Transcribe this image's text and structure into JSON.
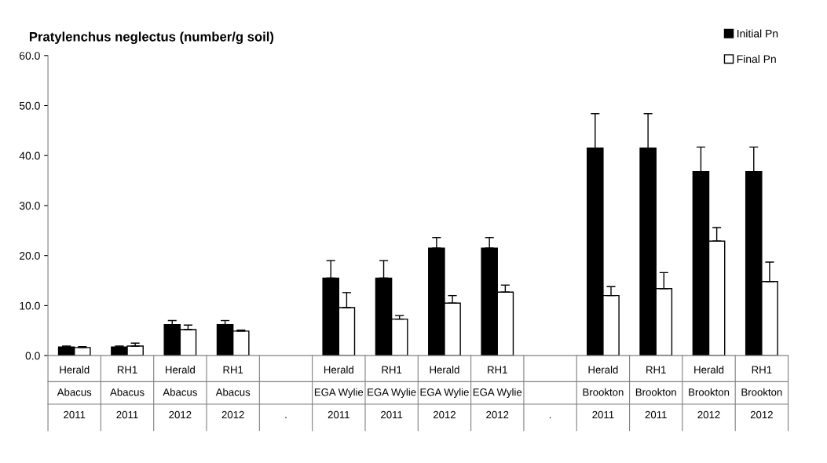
{
  "chart_data": {
    "type": "bar",
    "title": "Pratylenchus neglectus (number/g soil)",
    "categories": [
      "Herald\nAbacus\n2011",
      "RH1\nAbacus\n2011",
      "Herald\nAbacus\n2012",
      "RH1\nAbacus\n2012",
      "\n\n.",
      "Herald\nEGA Wylie\n2011",
      "RH1\nEGA Wylie\n2011",
      "Herald\nEGA Wylie\n2012",
      "RH1\nEGA Wylie\n2012",
      "\n\n.",
      "Herald\nBrookton\n2011",
      "RH1\nBrookton\n2011",
      "Herald\nBrookton\n2012",
      "RH1\nBrookton\n2012"
    ],
    "series": [
      {
        "name": "Initial Pn",
        "color": "#000000",
        "values": [
          1.7,
          1.7,
          6.2,
          6.2,
          null,
          15.5,
          15.5,
          21.5,
          21.5,
          null,
          41.5,
          41.5,
          36.8,
          36.8
        ],
        "errors": [
          [
            1.7,
            1.9
          ],
          [
            1.7,
            1.9
          ],
          [
            6.2,
            7.0
          ],
          [
            6.2,
            7.0
          ],
          null,
          [
            15.5,
            19.0
          ],
          [
            15.5,
            19.0
          ],
          [
            21.5,
            23.6
          ],
          [
            21.5,
            23.6
          ],
          null,
          [
            41.5,
            48.4
          ],
          [
            41.5,
            48.4
          ],
          [
            36.8,
            41.7
          ],
          [
            36.8,
            41.7
          ]
        ]
      },
      {
        "name": "Final Pn",
        "color": "#ffffff",
        "values": [
          1.6,
          1.9,
          5.2,
          4.9,
          null,
          9.6,
          7.3,
          10.5,
          12.7,
          null,
          12.0,
          13.4,
          22.9,
          14.8
        ],
        "errors": [
          [
            1.6,
            1.8
          ],
          [
            1.9,
            2.5
          ],
          [
            5.2,
            6.1
          ],
          [
            4.9,
            5.1
          ],
          null,
          [
            9.6,
            12.6
          ],
          [
            7.3,
            8.0
          ],
          [
            10.5,
            12.0
          ],
          [
            12.7,
            14.1
          ],
          null,
          [
            12.0,
            13.8
          ],
          [
            13.4,
            16.6
          ],
          [
            22.9,
            25.6
          ],
          [
            14.8,
            18.7
          ]
        ]
      }
    ],
    "ylim": [
      0,
      60
    ],
    "yticks": [
      {
        "value": 0,
        "label": "0.0"
      },
      {
        "value": 10,
        "label": "10.0"
      },
      {
        "value": 20,
        "label": "20.0"
      },
      {
        "value": 30,
        "label": "30.0"
      },
      {
        "value": 40,
        "label": "40.0"
      },
      {
        "value": 50,
        "label": "50.0"
      },
      {
        "value": 60,
        "label": "60.0"
      }
    ],
    "grid": false,
    "legend": "top right"
  }
}
